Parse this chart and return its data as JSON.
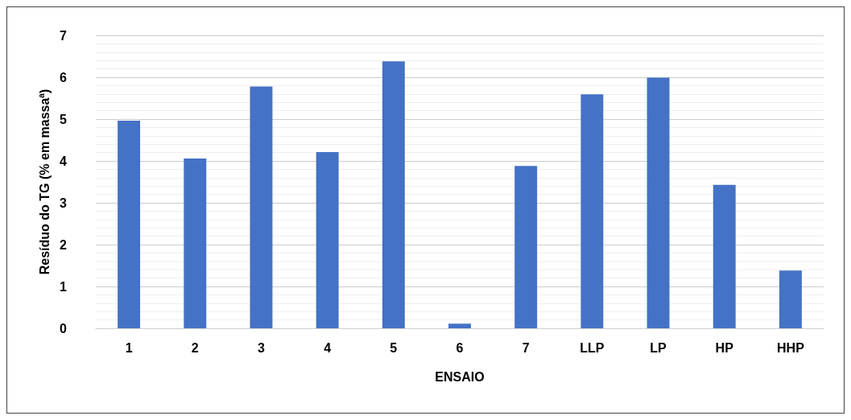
{
  "chart_data": {
    "type": "bar",
    "xlabel": "ENSAIO",
    "ylabel": "Resíduo do TG (% em massa$^{a}$)",
    "categories": [
      "1",
      "2",
      "3",
      "4",
      "5",
      "6",
      "7",
      "LLP",
      "LP",
      "HP",
      "HHP"
    ],
    "values": [
      4.96,
      4.06,
      5.78,
      4.21,
      6.38,
      0.11,
      3.88,
      5.59,
      5.99,
      3.43,
      1.38
    ],
    "color": "#4472c4",
    "ylim": [
      0,
      7
    ],
    "yticks": [
      0,
      1,
      2,
      3,
      4,
      5,
      6,
      7
    ],
    "grid": "y"
  }
}
